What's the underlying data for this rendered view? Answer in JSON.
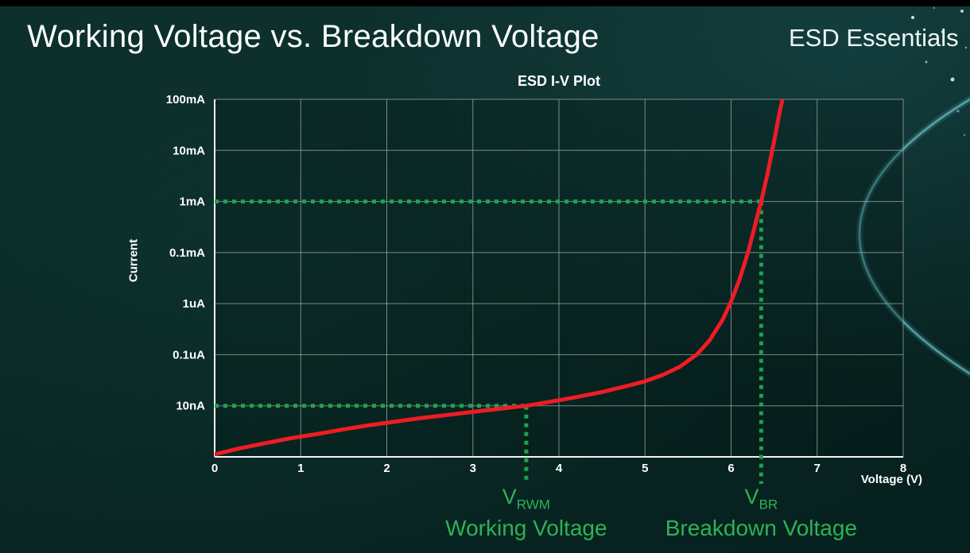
{
  "slide": {
    "title": "Working Voltage vs. Breakdown Voltage",
    "brand": "ESD Essentials"
  },
  "chart_data": {
    "type": "line",
    "title": "ESD I-V Plot",
    "xlabel": "Voltage (V)",
    "ylabel": "Current",
    "x_ticks": [
      0,
      1,
      2,
      3,
      4,
      5,
      6,
      7,
      8
    ],
    "xlim": [
      0,
      8
    ],
    "y_scale": "log",
    "y_tick_labels": [
      "100mA",
      "10mA",
      "1mA",
      "0.1mA",
      "1uA",
      "0.1uA",
      "10nA",
      ""
    ],
    "grid": true,
    "series": [
      {
        "name": "ESD I-V curve",
        "color": "#ee1c25",
        "points_row_from_top": [
          [
            0,
            6.95
          ],
          [
            0.3,
            6.83
          ],
          [
            0.6,
            6.73
          ],
          [
            0.9,
            6.63
          ],
          [
            1.2,
            6.55
          ],
          [
            1.5,
            6.46
          ],
          [
            1.8,
            6.38
          ],
          [
            2.1,
            6.31
          ],
          [
            2.4,
            6.24
          ],
          [
            2.7,
            6.18
          ],
          [
            3.0,
            6.12
          ],
          [
            3.3,
            6.06
          ],
          [
            3.62,
            6.0
          ],
          [
            3.9,
            5.92
          ],
          [
            4.2,
            5.83
          ],
          [
            4.5,
            5.73
          ],
          [
            4.8,
            5.61
          ],
          [
            5.0,
            5.52
          ],
          [
            5.2,
            5.4
          ],
          [
            5.4,
            5.24
          ],
          [
            5.6,
            5.0
          ],
          [
            5.75,
            4.72
          ],
          [
            5.9,
            4.32
          ],
          [
            6.0,
            3.96
          ],
          [
            6.1,
            3.52
          ],
          [
            6.2,
            2.98
          ],
          [
            6.3,
            2.32
          ],
          [
            6.35,
            2.0
          ],
          [
            6.42,
            1.48
          ],
          [
            6.5,
            0.82
          ],
          [
            6.57,
            0.2
          ],
          [
            6.62,
            -0.15
          ]
        ]
      }
    ],
    "annotations": {
      "working_voltage": {
        "x": 3.62,
        "row": 6,
        "current_level": "10nA",
        "label_main": "V",
        "label_sub": "RWM",
        "caption": "Working Voltage"
      },
      "breakdown_voltage": {
        "x": 6.35,
        "row": 2,
        "current_level": "1mA",
        "label_main": "V",
        "label_sub": "BR",
        "caption": "Breakdown Voltage"
      }
    },
    "legend": false,
    "colors": {
      "curve": "#ee1c25",
      "green_line": "#1fa24b",
      "green_text": "#2eb254",
      "grid": "#a7b6b3",
      "axis": "#eef4f3"
    }
  }
}
